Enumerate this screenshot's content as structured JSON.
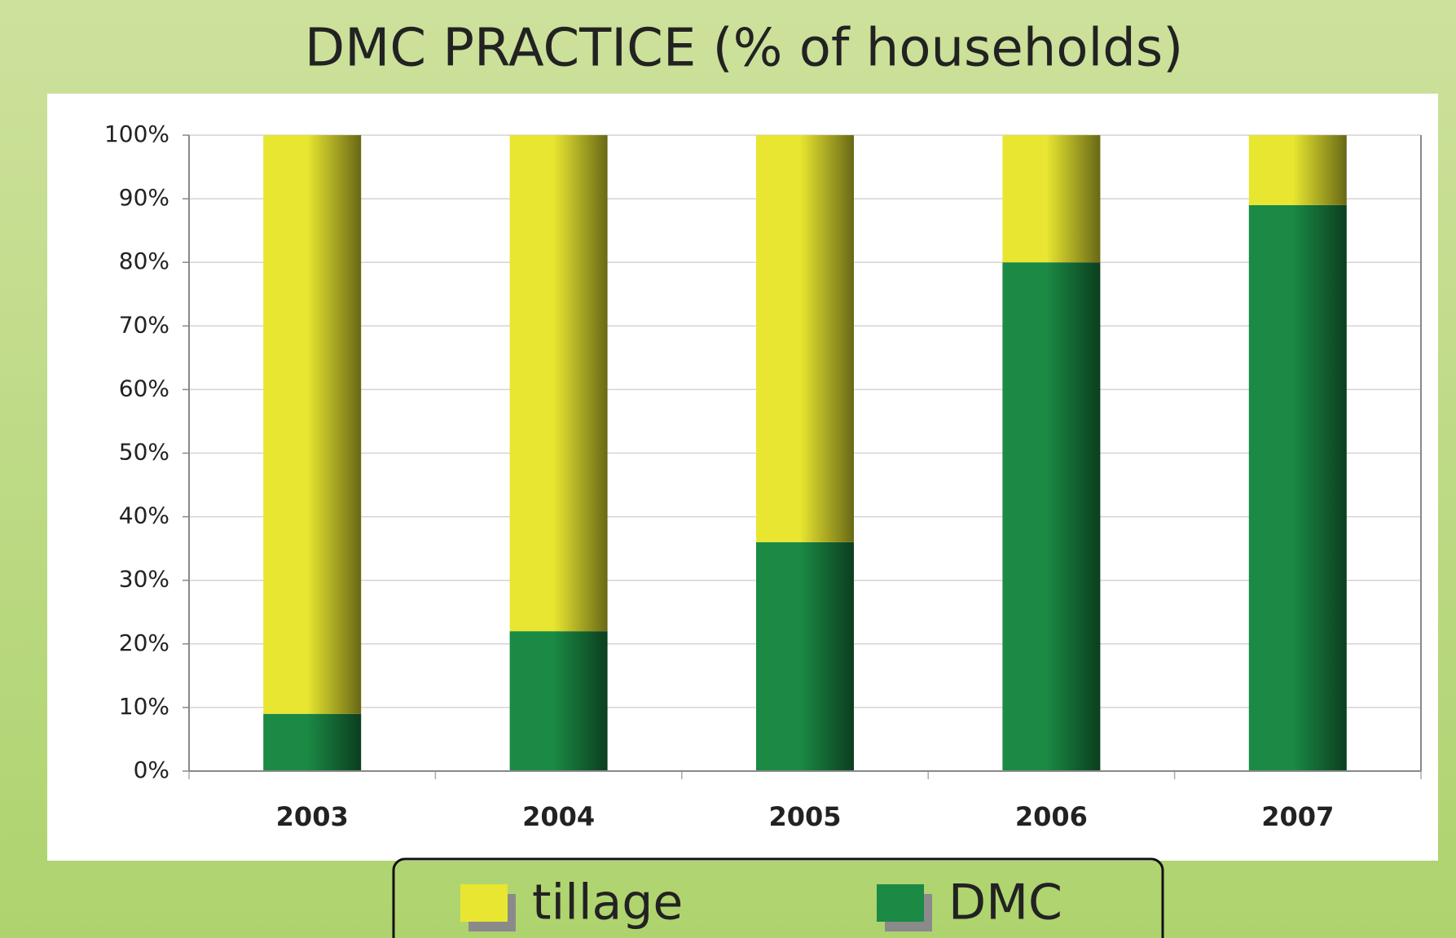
{
  "chart_data": {
    "type": "stacked_bar",
    "title": "DMC PRACTICE (% of households)",
    "categories": [
      "2003",
      "2004",
      "2005",
      "2006",
      "2007"
    ],
    "series": [
      {
        "name": "DMC",
        "color": "#1a8a44",
        "values": [
          9,
          22,
          36,
          80,
          89
        ]
      },
      {
        "name": "tillage",
        "color": "#e8e630",
        "values": [
          91,
          78,
          64,
          20,
          11
        ]
      }
    ],
    "legend_order": [
      "tillage",
      "DMC"
    ],
    "ylim": [
      0,
      100
    ],
    "yticks": [
      {
        "value": 0,
        "label": "0%"
      },
      {
        "value": 10,
        "label": "10%"
      },
      {
        "value": 20,
        "label": "20%"
      },
      {
        "value": 30,
        "label": "30%"
      },
      {
        "value": 40,
        "label": "40%"
      },
      {
        "value": 50,
        "label": "50%"
      },
      {
        "value": 60,
        "label": "60%"
      },
      {
        "value": 70,
        "label": "70%"
      },
      {
        "value": 80,
        "label": "80%"
      },
      {
        "value": 90,
        "label": "90%"
      },
      {
        "value": 100,
        "label": "100%"
      }
    ],
    "grid": true
  }
}
